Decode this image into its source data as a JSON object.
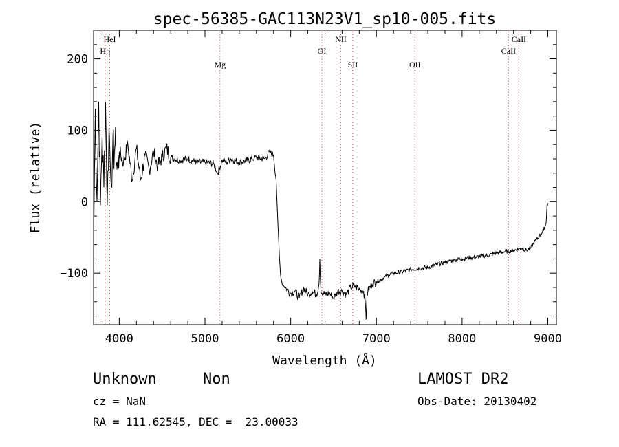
{
  "chart_data": {
    "type": "line",
    "title": "spec-56385-GAC113N23V1_sp10-005.fits",
    "xlabel": "Wavelength (Å)",
    "ylabel": "Flux (relative)",
    "xlim": [
      3700,
      9100
    ],
    "ylim": [
      -172,
      240
    ],
    "xticks": [
      {
        "v": 4000,
        "label": "4000"
      },
      {
        "v": 5000,
        "label": "5000"
      },
      {
        "v": 6000,
        "label": "6000"
      },
      {
        "v": 7000,
        "label": "7000"
      },
      {
        "v": 8000,
        "label": "8000"
      },
      {
        "v": 9000,
        "label": "9000"
      }
    ],
    "yticks": [
      {
        "v": 200,
        "label": "200"
      },
      {
        "v": 100,
        "label": "100"
      },
      {
        "v": 0,
        "label": "0"
      },
      {
        "v": -100,
        "label": "−100"
      }
    ],
    "grid": false,
    "lines": [
      {
        "label": "HeI",
        "x": 3889,
        "row": 0
      },
      {
        "label": "Hη",
        "x": 3835,
        "row": 1
      },
      {
        "label": "Mg",
        "x": 5175,
        "row": 2
      },
      {
        "label": "OI",
        "x": 6364,
        "row": 1
      },
      {
        "label": "NII",
        "x": 6584,
        "row": 0
      },
      {
        "label": "SII",
        "x": 6724,
        "row": 2
      },
      {
        "label": "OII",
        "x": 7450,
        "row": 2
      },
      {
        "label": "CaII",
        "x": 8542,
        "row": 1
      },
      {
        "label": "CaII",
        "x": 8662,
        "row": 0
      }
    ],
    "series": [
      {
        "x": [
          3705,
          3720,
          3740,
          3760,
          3780,
          3800,
          3820,
          3840,
          3860,
          3880,
          3900,
          3920,
          3950,
          3980,
          4000,
          4050,
          4100,
          4150,
          4200,
          4250,
          4300,
          4350,
          4400,
          4450,
          4500,
          4550,
          4600,
          4700,
          4800,
          4900,
          5000,
          5100,
          5150,
          5200,
          5250,
          5300,
          5400,
          5500,
          5600,
          5700,
          5750,
          5800,
          5830,
          5850,
          5860,
          5870,
          5880,
          5890,
          5900,
          5920,
          5950,
          6000,
          6050,
          6100,
          6150,
          6200,
          6250,
          6300,
          6330,
          6340,
          6350,
          6360,
          6400,
          6450,
          6500,
          6550,
          6600,
          6650,
          6700,
          6750,
          6800,
          6850,
          6870,
          6880,
          6890,
          6900,
          6950,
          7000,
          7100,
          7200,
          7300,
          7400,
          7500,
          7600,
          7700,
          7800,
          7900,
          8000,
          8100,
          8200,
          8300,
          8400,
          8500,
          8600,
          8700,
          8750,
          8800,
          8850,
          8900,
          8950,
          8980,
          8990,
          9000
        ],
        "y": [
          -20,
          130,
          0,
          140,
          -5,
          95,
          20,
          140,
          -5,
          105,
          35,
          60,
          80,
          45,
          70,
          55,
          80,
          30,
          75,
          30,
          65,
          45,
          70,
          50,
          62,
          75,
          62,
          58,
          60,
          55,
          55,
          53,
          40,
          58,
          55,
          60,
          55,
          58,
          62,
          60,
          70,
          65,
          30,
          -30,
          -55,
          -80,
          -100,
          -108,
          -115,
          -118,
          -122,
          -128,
          -125,
          -135,
          -120,
          -130,
          -125,
          -130,
          -115,
          -80,
          -118,
          -128,
          -130,
          -128,
          -135,
          -125,
          -125,
          -130,
          -120,
          -118,
          -122,
          -125,
          -140,
          -165,
          -130,
          -125,
          -115,
          -112,
          -105,
          -100,
          -98,
          -95,
          -93,
          -92,
          -88,
          -85,
          -82,
          -80,
          -78,
          -77,
          -75,
          -72,
          -70,
          -68,
          -65,
          -68,
          -65,
          -55,
          -48,
          -40,
          -30,
          -5,
          -2
        ]
      }
    ]
  },
  "info": {
    "obj_class": "Unknown",
    "obj_subclass": "Non",
    "survey": "LAMOST DR2",
    "cz": "cz = NaN",
    "obs_date": "Obs-Date: 20130402",
    "radec": "RA = 111.62545, DEC =  23.00033"
  }
}
